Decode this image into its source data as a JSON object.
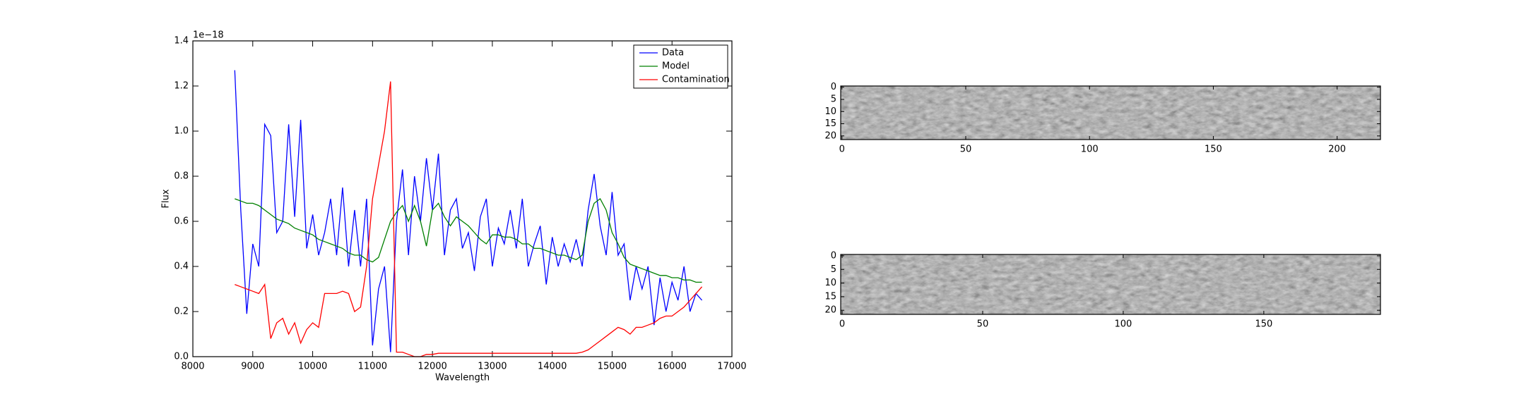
{
  "chart_data": [
    {
      "type": "line",
      "x_label": "Wavelength",
      "y_label": "Flux",
      "offset_label": "1e−18",
      "xlim": [
        8000,
        17000
      ],
      "xticks": [
        8000,
        9000,
        10000,
        11000,
        12000,
        13000,
        14000,
        15000,
        16000,
        17000
      ],
      "ylim": [
        0,
        1.4
      ],
      "yticks": [
        {
          "value": 0,
          "label": "0.0"
        },
        0.2,
        0.4,
        0.6,
        0.8,
        {
          "value": 1,
          "label": "1.0"
        },
        1.2,
        1.4
      ],
      "legend": "upper right",
      "x": [
        8700,
        8800,
        8900,
        9000,
        9100,
        9200,
        9300,
        9400,
        9500,
        9600,
        9700,
        9800,
        9900,
        10000,
        10100,
        10200,
        10300,
        10400,
        10500,
        10600,
        10700,
        10800,
        10900,
        11000,
        11100,
        11200,
        11300,
        11400,
        11500,
        11600,
        11700,
        11800,
        11900,
        12000,
        12100,
        12200,
        12300,
        12400,
        12500,
        12600,
        12700,
        12800,
        12900,
        13000,
        13100,
        13200,
        13300,
        13400,
        13500,
        13600,
        13700,
        13800,
        13900,
        14000,
        14100,
        14200,
        14300,
        14400,
        14500,
        14600,
        14700,
        14800,
        14900,
        15000,
        15100,
        15200,
        15300,
        15400,
        15500,
        15600,
        15700,
        15800,
        15900,
        16000,
        16100,
        16200,
        16300,
        16400,
        16500
      ],
      "series": [
        {
          "name": "Data",
          "color": "#0000ff",
          "values": [
            1.27,
            0.65,
            0.19,
            0.5,
            0.4,
            1.03,
            0.98,
            0.55,
            0.6,
            1.03,
            0.62,
            1.05,
            0.48,
            0.63,
            0.45,
            0.55,
            0.7,
            0.45,
            0.75,
            0.4,
            0.65,
            0.4,
            0.7,
            0.05,
            0.3,
            0.4,
            0.02,
            0.6,
            0.83,
            0.45,
            0.8,
            0.6,
            0.88,
            0.65,
            0.9,
            0.45,
            0.65,
            0.7,
            0.48,
            0.55,
            0.38,
            0.62,
            0.7,
            0.4,
            0.57,
            0.5,
            0.65,
            0.48,
            0.7,
            0.4,
            0.5,
            0.58,
            0.32,
            0.53,
            0.4,
            0.5,
            0.42,
            0.52,
            0.4,
            0.65,
            0.81,
            0.58,
            0.45,
            0.73,
            0.45,
            0.5,
            0.25,
            0.4,
            0.3,
            0.4,
            0.14,
            0.35,
            0.2,
            0.33,
            0.25,
            0.4,
            0.2,
            0.28,
            0.25
          ]
        },
        {
          "name": "Model",
          "color": "#008000",
          "values": [
            0.7,
            0.69,
            0.68,
            0.68,
            0.67,
            0.65,
            0.63,
            0.61,
            0.6,
            0.59,
            0.57,
            0.56,
            0.55,
            0.54,
            0.52,
            0.51,
            0.5,
            0.49,
            0.48,
            0.46,
            0.45,
            0.45,
            0.43,
            0.42,
            0.44,
            0.52,
            0.6,
            0.64,
            0.67,
            0.6,
            0.67,
            0.6,
            0.49,
            0.65,
            0.68,
            0.62,
            0.58,
            0.62,
            0.6,
            0.58,
            0.55,
            0.52,
            0.5,
            0.54,
            0.54,
            0.53,
            0.53,
            0.52,
            0.5,
            0.5,
            0.48,
            0.48,
            0.47,
            0.46,
            0.45,
            0.45,
            0.44,
            0.43,
            0.45,
            0.6,
            0.68,
            0.7,
            0.65,
            0.55,
            0.5,
            0.44,
            0.41,
            0.4,
            0.39,
            0.38,
            0.37,
            0.36,
            0.36,
            0.35,
            0.35,
            0.34,
            0.34,
            0.33,
            0.33
          ]
        },
        {
          "name": "Contamination",
          "color": "#ff0000",
          "values": [
            0.32,
            0.31,
            0.3,
            0.29,
            0.28,
            0.32,
            0.08,
            0.15,
            0.17,
            0.1,
            0.15,
            0.06,
            0.12,
            0.15,
            0.13,
            0.28,
            0.28,
            0.28,
            0.29,
            0.28,
            0.2,
            0.22,
            0.4,
            0.7,
            0.85,
            1,
            1.22,
            0.02,
            0.02,
            0.01,
            0,
            0,
            0.01,
            0.01,
            0.015,
            0.015,
            0.015,
            0.015,
            0.015,
            0.015,
            0.015,
            0.015,
            0.015,
            0.015,
            0.015,
            0.015,
            0.015,
            0.015,
            0.015,
            0.015,
            0.015,
            0.015,
            0.015,
            0.015,
            0.015,
            0.015,
            0.015,
            0.015,
            0.02,
            0.03,
            0.05,
            0.07,
            0.09,
            0.11,
            0.13,
            0.12,
            0.1,
            0.13,
            0.13,
            0.14,
            0.15,
            0.17,
            0.18,
            0.18,
            0.2,
            0.22,
            0.25,
            0.28,
            0.31
          ]
        }
      ]
    },
    {
      "type": "image",
      "xlim": [
        -0.5,
        217.5
      ],
      "xticks": [
        0,
        50,
        100,
        150,
        200
      ],
      "ylim": [
        -0.5,
        21.5
      ],
      "yticks": [
        0,
        5,
        10,
        15,
        20
      ],
      "inverted_y": true,
      "cmap": "gray"
    },
    {
      "type": "image",
      "xlim": [
        -0.5,
        191.5
      ],
      "xticks": [
        0,
        50,
        100,
        150
      ],
      "ylim": [
        -0.5,
        21.5
      ],
      "yticks": [
        0,
        5,
        10,
        15,
        20
      ],
      "inverted_y": true,
      "cmap": "gray"
    }
  ]
}
